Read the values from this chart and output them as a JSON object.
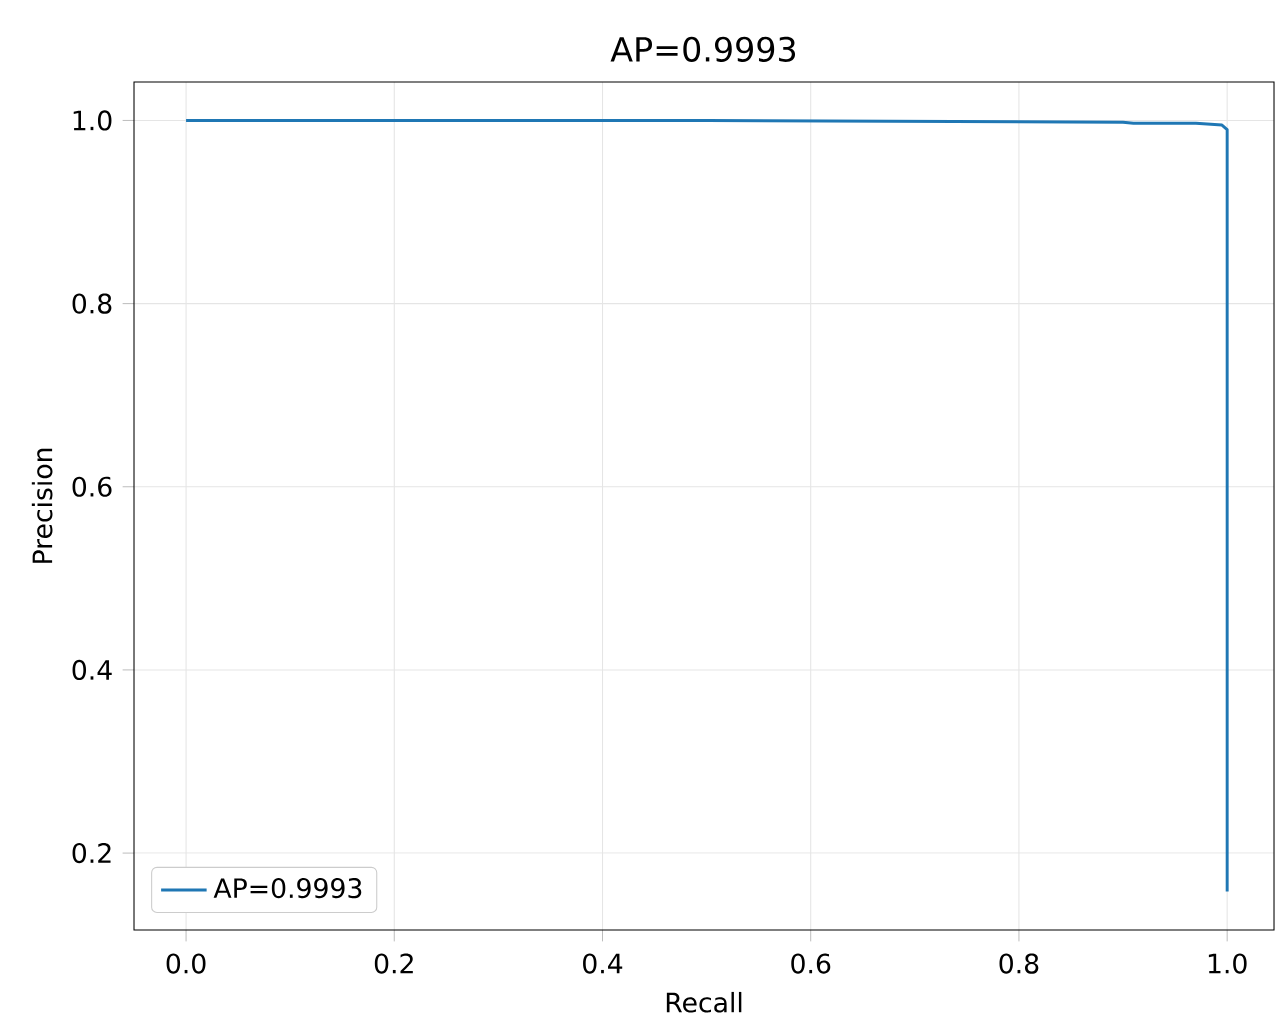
{
  "chart_data": {
    "type": "line",
    "title": "AP=0.9993",
    "xlabel": "Recall",
    "ylabel": "Precision",
    "series": [
      {
        "name": "AP=0.9993",
        "color": "#1f77b4",
        "x": [
          0.0,
          0.5,
          0.9,
          0.91,
          0.97,
          0.995,
          1.0,
          1.0
        ],
        "values": [
          1.0,
          1.0,
          0.998,
          0.997,
          0.997,
          0.995,
          0.99,
          0.158
        ]
      }
    ],
    "xlim": [
      -0.05,
      1.045
    ],
    "ylim": [
      0.116,
      1.042
    ],
    "xticks": [
      {
        "value": 0.0,
        "label": "0.0"
      },
      {
        "value": 0.2,
        "label": "0.2"
      },
      {
        "value": 0.4,
        "label": "0.4"
      },
      {
        "value": 0.6,
        "label": "0.6"
      },
      {
        "value": 0.8,
        "label": "0.8"
      },
      {
        "value": 1.0,
        "label": "1.0"
      }
    ],
    "yticks": [
      {
        "value": 0.2,
        "label": "0.2"
      },
      {
        "value": 0.4,
        "label": "0.4"
      },
      {
        "value": 0.6,
        "label": "0.6"
      },
      {
        "value": 0.8,
        "label": "0.8"
      },
      {
        "value": 1.0,
        "label": "1.0"
      }
    ],
    "grid": true,
    "legend": "bottom left",
    "marker": "none",
    "line_style": "solid"
  }
}
